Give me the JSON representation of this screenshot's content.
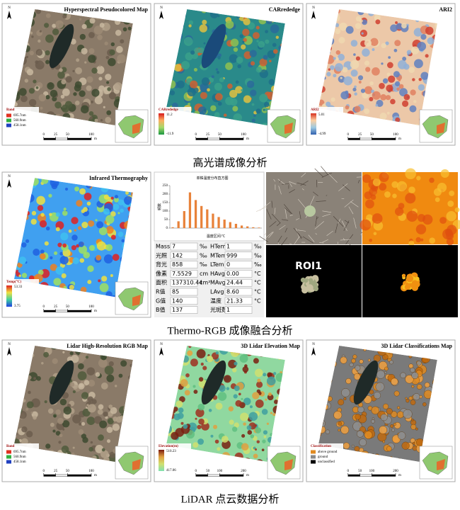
{
  "north": "N",
  "row1": {
    "panels": [
      {
        "title": "Hyperspectral Pseudocolored Map",
        "style": "rgb",
        "legend": {
          "kind": "bands",
          "title": "Band",
          "items": [
            {
              "label": "695.7nm",
              "color": "#e03020"
            },
            {
              "label": "560.9nm",
              "color": "#30b040"
            },
            {
              "label": "458.1nm",
              "color": "#2040c0"
            }
          ]
        },
        "scale": {
          "ticks": [
            0,
            25,
            50,
            100
          ],
          "unit": "m"
        }
      },
      {
        "title": "CARrededge",
        "style": "car",
        "legend": {
          "kind": "gradient",
          "title": "CARrededge",
          "max": 11.2,
          "min": -11.9,
          "colors": [
            "#d7191c",
            "#fdae61",
            "#a6d96a",
            "#1a9641"
          ]
        },
        "scale": {
          "ticks": [
            0,
            25,
            50,
            100
          ],
          "unit": "m"
        }
      },
      {
        "title": "ARI2",
        "style": "ari",
        "legend": {
          "kind": "gradient",
          "title": "ARI2",
          "max": 5.01,
          "min": -4.99,
          "colors": [
            "#d7301f",
            "#fdd0a2",
            "#9ecae1",
            "#3060b0"
          ]
        },
        "scale": {
          "ticks": [
            0,
            25,
            50,
            100
          ],
          "unit": "m"
        }
      }
    ],
    "caption": "高光谱成像分析"
  },
  "row2": {
    "panel": {
      "title": "Infrared Thermography",
      "style": "thermo",
      "legend": {
        "kind": "gradient",
        "title": "Temp(°C)",
        "max": 53.33,
        "min": 3.75,
        "colors": [
          "#e02020",
          "#f0e040",
          "#40d0a0",
          "#2040e0"
        ]
      },
      "scale": {
        "ticks": [
          0,
          25,
          50,
          100
        ],
        "unit": "m"
      }
    },
    "histogram": {
      "title": "单株温度分布直方图",
      "x_label": "温度区间/℃",
      "y_label": "频数",
      "values": [
        5,
        40,
        100,
        210,
        165,
        130,
        110,
        85,
        65,
        50,
        35,
        25,
        15,
        10,
        5,
        3
      ],
      "ylim": [
        0,
        250
      ],
      "yticks": [
        0,
        50,
        100,
        150,
        200,
        250
      ],
      "color": "#e8823a"
    },
    "table": {
      "left": [
        [
          "Mass",
          "7",
          "‰"
        ],
        [
          "光照",
          "142",
          "‰"
        ],
        [
          "背光",
          "858",
          "‰"
        ],
        [
          "像素",
          "7.5529",
          "cm"
        ],
        [
          "面积",
          "137310.44",
          "cm²"
        ],
        [
          "R值",
          "85"
        ],
        [
          "G值",
          "140"
        ],
        [
          "B值",
          "137"
        ]
      ],
      "right": [
        [
          "HTem",
          "1",
          "‰"
        ],
        [
          "MTem",
          "999",
          "‰"
        ],
        [
          "LTem",
          "0",
          "‰"
        ],
        [
          "HAvg",
          "0.00",
          "°C"
        ],
        [
          "MAvg",
          "24.44",
          "°C"
        ],
        [
          "LAvg",
          "8.60",
          "°C"
        ],
        [
          "温度",
          "21.33",
          "°C"
        ],
        [
          "光斑数",
          "1"
        ]
      ]
    },
    "roi_label": "ROI1",
    "caption": "Thermo-RGB 成像融合分析"
  },
  "row3": {
    "panels": [
      {
        "title": "Lidar High-Resolution RGB Map",
        "style": "rgb",
        "legend": {
          "kind": "bands",
          "title": "Band",
          "items": [
            {
              "label": "695.7nm",
              "color": "#e03020"
            },
            {
              "label": "560.9nm",
              "color": "#30b040"
            },
            {
              "label": "458.1nm",
              "color": "#2040c0"
            }
          ]
        },
        "scale": {
          "ticks": [
            0,
            25,
            50,
            100
          ],
          "unit": "m"
        }
      },
      {
        "title": "3D Lidar Elevation Map",
        "style": "elev",
        "legend": {
          "kind": "gradient",
          "title": "Elevation(m)",
          "max": 510.23,
          "min": 417.06,
          "colors": [
            "#7a1a10",
            "#e0a040",
            "#d0e070",
            "#80e0b0"
          ]
        },
        "scale": {
          "ticks": [
            0,
            50,
            100,
            200
          ],
          "unit": "m"
        }
      },
      {
        "title": "3D Lidar Classifications Map",
        "style": "class",
        "legend": {
          "kind": "bands",
          "title": "Classification",
          "items": [
            {
              "label": "above ground",
              "color": "#e08a20"
            },
            {
              "label": "ground",
              "color": "#8a8a8a"
            },
            {
              "label": "unclassified",
              "color": "#000000"
            }
          ]
        },
        "scale": {
          "ticks": [
            0,
            50,
            100,
            200
          ],
          "unit": "m"
        }
      }
    ],
    "caption": "LiDAR 点云数据分析"
  }
}
